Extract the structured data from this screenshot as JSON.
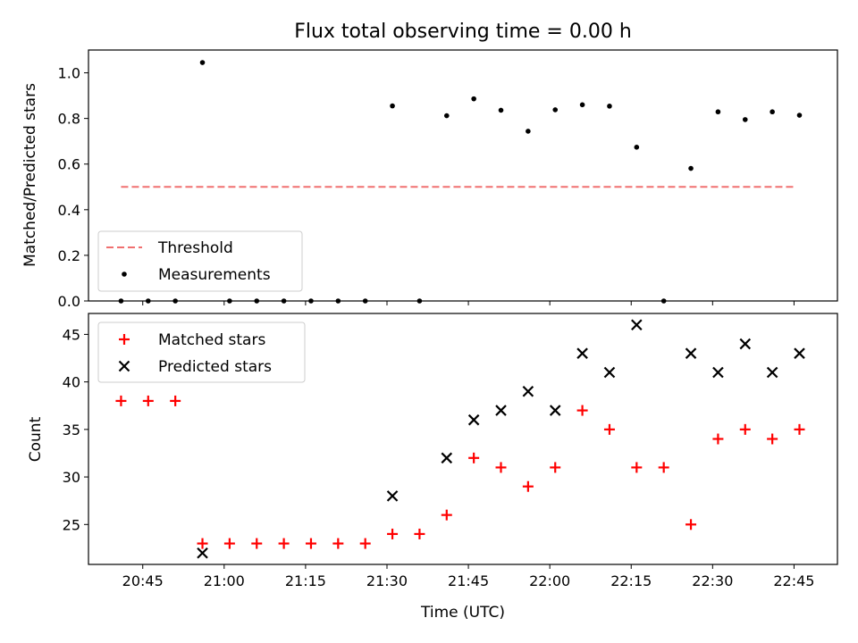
{
  "chart_data": [
    {
      "type": "scatter",
      "title": "Flux total observing time = 0.00 h",
      "xlabel": "",
      "ylabel": "Matched/Predicted stars",
      "xlim": [
        "20:35",
        "22:53"
      ],
      "ylim": [
        0,
        1.1
      ],
      "yticks": [
        "0.0",
        "0.2",
        "0.4",
        "0.6",
        "0.8",
        "1.0"
      ],
      "legend_position": "lower-left",
      "threshold": {
        "name": "Threshold",
        "x": [
          "20:41",
          "22:45"
        ],
        "y": 0.5,
        "color": "#f07070",
        "style": "dashed"
      },
      "series": [
        {
          "name": "Measurements",
          "color": "#000000",
          "marker": "dot",
          "x": [
            "20:41",
            "20:46",
            "20:51",
            "20:56",
            "21:01",
            "21:06",
            "21:11",
            "21:16",
            "21:21",
            "21:26",
            "21:31",
            "21:36",
            "21:41",
            "21:46",
            "21:51",
            "21:56",
            "22:01",
            "22:06",
            "22:11",
            "22:16",
            "22:21",
            "22:26",
            "22:31",
            "22:36",
            "22:41",
            "22:46"
          ],
          "y": [
            0,
            0,
            0,
            1.045,
            0,
            0,
            0,
            0,
            0,
            0,
            0.855,
            0,
            0.812,
            0.886,
            0.836,
            0.744,
            0.838,
            0.86,
            0.854,
            0.674,
            0,
            0.581,
            0.829,
            0.795,
            0.829,
            0.814
          ]
        }
      ]
    },
    {
      "type": "scatter",
      "title": "",
      "xlabel": "Time (UTC)",
      "ylabel": "Count",
      "xlim": [
        "20:35",
        "22:53"
      ],
      "ylim": [
        20.8,
        47.2
      ],
      "yticks": [
        "25",
        "30",
        "35",
        "40",
        "45"
      ],
      "xticks": [
        "20:45",
        "21:00",
        "21:15",
        "21:30",
        "21:45",
        "22:00",
        "22:15",
        "22:30",
        "22:45"
      ],
      "legend_position": "upper-left",
      "series": [
        {
          "name": "Matched stars",
          "color": "#ff0000",
          "marker": "plus",
          "x": [
            "20:41",
            "20:46",
            "20:51",
            "20:56",
            "21:01",
            "21:06",
            "21:11",
            "21:16",
            "21:21",
            "21:26",
            "21:31",
            "21:36",
            "21:41",
            "21:46",
            "21:51",
            "21:56",
            "22:01",
            "22:06",
            "22:11",
            "22:16",
            "22:21",
            "22:26",
            "22:31",
            "22:36",
            "22:41",
            "22:46"
          ],
          "y": [
            38,
            38,
            38,
            23,
            23,
            23,
            23,
            23,
            23,
            23,
            24,
            24,
            26,
            32,
            31,
            29,
            31,
            37,
            35,
            31,
            31,
            25,
            34,
            35,
            34,
            35
          ]
        },
        {
          "name": "Predicted stars",
          "color": "#000000",
          "marker": "x",
          "x": [
            "20:56",
            "21:31",
            "21:41",
            "21:46",
            "21:51",
            "21:56",
            "22:01",
            "22:06",
            "22:11",
            "22:16",
            "22:26",
            "22:31",
            "22:36",
            "22:41",
            "22:46"
          ],
          "y": [
            22,
            28,
            32,
            36,
            37,
            39,
            37,
            43,
            41,
            46,
            43,
            41,
            44,
            41,
            43
          ]
        }
      ]
    }
  ]
}
